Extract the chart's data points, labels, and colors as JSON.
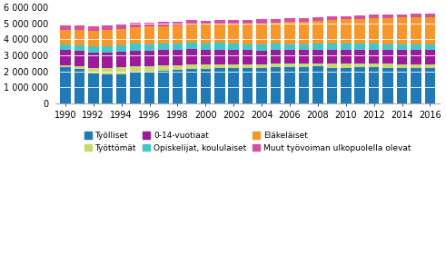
{
  "years": [
    1990,
    1991,
    1992,
    1993,
    1994,
    1995,
    1996,
    1997,
    1998,
    1999,
    2000,
    2001,
    2002,
    2003,
    2004,
    2005,
    2006,
    2007,
    2008,
    2009,
    2010,
    2011,
    2012,
    2013,
    2014,
    2015,
    2016
  ],
  "Työlliset": [
    2285000,
    2140000,
    1888000,
    1834000,
    1837000,
    1961000,
    1980000,
    2054000,
    2101000,
    2168000,
    2171000,
    2220000,
    2196000,
    2200000,
    2220000,
    2252000,
    2265000,
    2292000,
    2318000,
    2213000,
    2230000,
    2261000,
    2261000,
    2220000,
    2201000,
    2207000,
    2215000
  ],
  "Työttömät": [
    100000,
    193000,
    328000,
    403000,
    408000,
    382000,
    355000,
    314000,
    276000,
    265000,
    253000,
    238000,
    237000,
    237000,
    228000,
    220000,
    204000,
    183000,
    172000,
    264000,
    264000,
    243000,
    242000,
    259000,
    264000,
    252000,
    237000
  ],
  "0-14-vuotiaat": [
    940000,
    944000,
    956000,
    963000,
    965000,
    963000,
    958000,
    956000,
    951000,
    943000,
    930000,
    916000,
    899000,
    882000,
    868000,
    858000,
    853000,
    854000,
    858000,
    861000,
    862000,
    860000,
    859000,
    862000,
    866000,
    872000,
    876000
  ],
  "Opiskelijat": [
    370000,
    375000,
    385000,
    400000,
    415000,
    420000,
    420000,
    415000,
    410000,
    405000,
    400000,
    398000,
    396000,
    394000,
    392000,
    390000,
    388000,
    385000,
    382000,
    385000,
    380000,
    375000,
    370000,
    365000,
    360000,
    355000,
    350000
  ],
  "Eläkeläiset": [
    900000,
    945000,
    975000,
    1005000,
    1025000,
    1055000,
    1080000,
    1108000,
    1135000,
    1162000,
    1185000,
    1210000,
    1248000,
    1278000,
    1308000,
    1340000,
    1372000,
    1400000,
    1430000,
    1470000,
    1512000,
    1554000,
    1596000,
    1638000,
    1673000,
    1703000,
    1730000
  ],
  "Muut": [
    280000,
    285000,
    285000,
    280000,
    275000,
    270000,
    265000,
    258000,
    252000,
    248000,
    244000,
    240000,
    238000,
    236000,
    234000,
    232000,
    230000,
    228000,
    226000,
    224000,
    222000,
    220000,
    218000,
    218000,
    218000,
    218000,
    218000
  ],
  "colors": {
    "Työlliset": "#1f7ab5",
    "Työttömät": "#c8d96f",
    "0-14-vuotiaat": "#9b1b9b",
    "Opiskelijat": "#3ec9c9",
    "Eläkeläiset": "#f5972a",
    "Muut": "#d94fa0"
  },
  "legend_labels": {
    "Työlliset": "Työlliset",
    "Työttömät": "Työttömät",
    "0-14-vuotiaat": "0-14-vuotiaat",
    "Opiskelijat": "Opiskelijat, koululaiset",
    "Eläkeläiset": "Eläkeläiset",
    "Muut": "Muut työvoiman ulkopuolella olevat"
  },
  "stack_order": [
    "Työlliset",
    "Työttömät",
    "0-14-vuotiaat",
    "Opiskelijat",
    "Eläkeläiset",
    "Muut"
  ],
  "legend_row1": [
    "Työlliset",
    "Työttömät",
    "0-14-vuotiaat"
  ],
  "legend_row2": [
    "Opiskelijat",
    "Eläkeläiset",
    "Muut"
  ],
  "ylim": [
    0,
    6000000
  ],
  "yticks": [
    0,
    1000000,
    2000000,
    3000000,
    4000000,
    5000000,
    6000000
  ],
  "ytick_labels": [
    "0",
    "1 000 000",
    "2 000 000",
    "3 000 000",
    "4 000 000",
    "5 000 000",
    "6 000 000"
  ],
  "xtick_step": 2,
  "bar_width": 0.75
}
